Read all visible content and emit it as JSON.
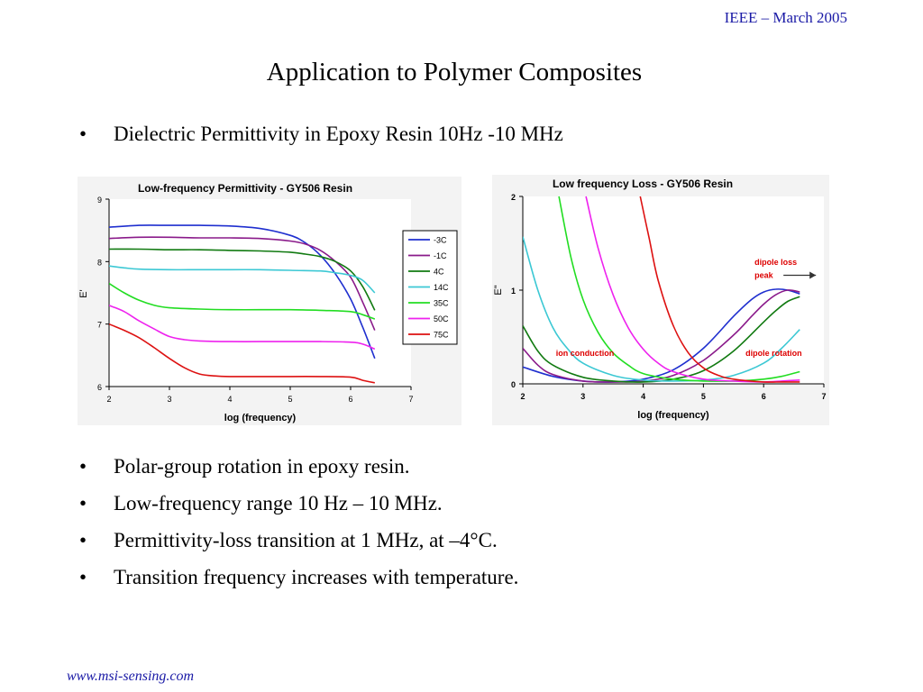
{
  "header": {
    "event": "IEEE – March 2005"
  },
  "slide": {
    "title": "Application to Polymer Composites"
  },
  "bullets_top": [
    {
      "text": "Dielectric Permittivity in Epoxy Resin 10Hz -10 MHz"
    }
  ],
  "bullets_bottom": [
    {
      "text": "Polar-group rotation in epoxy resin."
    },
    {
      "text": "Low-frequency range 10 Hz – 10 MHz."
    },
    {
      "text": "Permittivity-loss transition at 1 MHz, at –4°C."
    },
    {
      "text": "Transition frequency increases with temperature."
    }
  ],
  "bullet_glyph": "•",
  "footer": {
    "url": "www.msi-sensing.com"
  },
  "colors": {
    "-3C": "#1f2fcf",
    "-1C": "#8a1a8a",
    "4C": "#117a11",
    "14C": "#3cc8d4",
    "35C": "#22dd22",
    "50C": "#ee22ee",
    "75C": "#dd1111",
    "annotation": "#dd0000"
  },
  "chart_data": [
    {
      "type": "line",
      "title": "Low-frequency Permittivity - GY506 Resin",
      "xlabel": "log (frequency)",
      "ylabel": "E'",
      "xlim": [
        2,
        7
      ],
      "ylim": [
        6,
        9
      ],
      "xticks": [
        "2",
        "3",
        "4",
        "5",
        "6",
        "7"
      ],
      "yticks": [
        "6",
        "7",
        "8",
        "9"
      ],
      "grid": false,
      "legend": "right",
      "series": [
        {
          "name": "-3C",
          "x": [
            2,
            2.5,
            3,
            3.5,
            4,
            4.5,
            5,
            5.25,
            5.5,
            5.75,
            6,
            6.2,
            6.4
          ],
          "y": [
            8.55,
            8.58,
            8.58,
            8.58,
            8.57,
            8.53,
            8.42,
            8.3,
            8.1,
            7.8,
            7.4,
            6.95,
            6.45
          ]
        },
        {
          "name": "-1C",
          "x": [
            2,
            2.5,
            3,
            3.5,
            4,
            4.5,
            5,
            5.25,
            5.5,
            5.75,
            6,
            6.2,
            6.4
          ],
          "y": [
            8.37,
            8.39,
            8.39,
            8.38,
            8.38,
            8.37,
            8.33,
            8.28,
            8.18,
            8.0,
            7.75,
            7.35,
            6.9
          ]
        },
        {
          "name": "4C",
          "x": [
            2,
            2.5,
            3,
            3.5,
            4,
            4.5,
            5,
            5.25,
            5.5,
            5.75,
            6,
            6.2,
            6.4
          ],
          "y": [
            8.2,
            8.2,
            8.19,
            8.19,
            8.18,
            8.17,
            8.15,
            8.12,
            8.08,
            8.0,
            7.85,
            7.6,
            7.22
          ]
        },
        {
          "name": "14C",
          "x": [
            2,
            2.25,
            2.5,
            3,
            3.5,
            4,
            4.5,
            5,
            5.5,
            5.75,
            6,
            6.2,
            6.4
          ],
          "y": [
            7.93,
            7.9,
            7.88,
            7.87,
            7.87,
            7.87,
            7.87,
            7.86,
            7.85,
            7.82,
            7.78,
            7.7,
            7.5
          ]
        },
        {
          "name": "35C",
          "x": [
            2,
            2.25,
            2.5,
            2.75,
            3,
            3.5,
            4,
            4.5,
            5,
            5.5,
            6,
            6.2,
            6.4
          ],
          "y": [
            7.65,
            7.5,
            7.38,
            7.3,
            7.26,
            7.24,
            7.23,
            7.23,
            7.23,
            7.22,
            7.2,
            7.15,
            7.08
          ]
        },
        {
          "name": "50C",
          "x": [
            2,
            2.25,
            2.5,
            2.75,
            3,
            3.25,
            3.5,
            4,
            4.5,
            5,
            5.5,
            6,
            6.2,
            6.4
          ],
          "y": [
            7.3,
            7.2,
            7.05,
            6.92,
            6.8,
            6.75,
            6.73,
            6.72,
            6.72,
            6.72,
            6.72,
            6.71,
            6.68,
            6.6
          ]
        },
        {
          "name": "75C",
          "x": [
            2,
            2.25,
            2.5,
            2.75,
            3,
            3.25,
            3.5,
            3.75,
            4,
            4.5,
            5,
            5.5,
            6,
            6.2,
            6.4
          ],
          "y": [
            7.0,
            6.9,
            6.78,
            6.62,
            6.45,
            6.3,
            6.2,
            6.17,
            6.16,
            6.16,
            6.16,
            6.16,
            6.15,
            6.1,
            6.06
          ]
        }
      ]
    },
    {
      "type": "line",
      "title": "Low frequency Loss - GY506 Resin",
      "xlabel": "log (frequency)",
      "ylabel": "E\"",
      "xlim": [
        2,
        7
      ],
      "ylim": [
        0,
        2
      ],
      "xticks": [
        "2",
        "3",
        "4",
        "5",
        "6",
        "7"
      ],
      "yticks": [
        "0",
        "1",
        "2"
      ],
      "grid": false,
      "legend": "none",
      "annotations": [
        {
          "text": "dipole loss",
          "x": 5.85,
          "y": 1.27
        },
        {
          "text": "peak",
          "x": 5.85,
          "y": 1.13
        },
        {
          "text": "ion conduction",
          "x": 2.55,
          "y": 0.3
        },
        {
          "text": "dipole rotation",
          "x": 5.7,
          "y": 0.3
        }
      ],
      "series": [
        {
          "name": "-3C",
          "x": [
            2,
            2.5,
            3,
            3.5,
            4,
            4.5,
            5,
            5.5,
            5.8,
            6,
            6.2,
            6.4,
            6.6
          ],
          "y": [
            0.18,
            0.08,
            0.03,
            0.02,
            0.05,
            0.15,
            0.38,
            0.72,
            0.9,
            0.98,
            1.01,
            1.0,
            0.96
          ]
        },
        {
          "name": "-1C",
          "x": [
            2,
            2.25,
            2.5,
            3,
            3.5,
            4,
            4.5,
            5,
            5.5,
            5.8,
            6,
            6.2,
            6.4,
            6.6
          ],
          "y": [
            0.38,
            0.2,
            0.1,
            0.03,
            0.02,
            0.03,
            0.09,
            0.25,
            0.52,
            0.72,
            0.85,
            0.95,
            1.0,
            0.98
          ]
        },
        {
          "name": "4C",
          "x": [
            2,
            2.25,
            2.5,
            3,
            3.5,
            4,
            4.5,
            5,
            5.5,
            6,
            6.2,
            6.4,
            6.6
          ],
          "y": [
            0.62,
            0.35,
            0.2,
            0.07,
            0.03,
            0.02,
            0.05,
            0.14,
            0.35,
            0.66,
            0.78,
            0.88,
            0.93
          ]
        },
        {
          "name": "14C",
          "x": [
            2,
            2.25,
            2.5,
            2.75,
            3,
            3.5,
            4,
            4.5,
            5,
            5.5,
            6,
            6.3,
            6.6
          ],
          "y": [
            1.57,
            1.0,
            0.6,
            0.37,
            0.22,
            0.09,
            0.04,
            0.03,
            0.04,
            0.09,
            0.22,
            0.38,
            0.58
          ]
        },
        {
          "name": "35C",
          "x": [
            2.6,
            2.8,
            3,
            3.25,
            3.5,
            3.75,
            4,
            4.5,
            5,
            5.5,
            6,
            6.3,
            6.6
          ],
          "y": [
            2.0,
            1.35,
            0.9,
            0.55,
            0.33,
            0.2,
            0.11,
            0.05,
            0.03,
            0.03,
            0.05,
            0.08,
            0.13
          ]
        },
        {
          "name": "50C",
          "x": [
            3.05,
            3.25,
            3.5,
            3.75,
            4,
            4.25,
            4.5,
            5,
            5.5,
            6,
            6.3,
            6.6
          ],
          "y": [
            2.0,
            1.45,
            0.95,
            0.6,
            0.37,
            0.22,
            0.13,
            0.05,
            0.03,
            0.02,
            0.03,
            0.04
          ]
        },
        {
          "name": "75C",
          "x": [
            3.95,
            4.1,
            4.25,
            4.5,
            4.75,
            5,
            5.25,
            5.5,
            6,
            6.3,
            6.6
          ],
          "y": [
            2.0,
            1.55,
            1.1,
            0.62,
            0.33,
            0.17,
            0.09,
            0.05,
            0.02,
            0.02,
            0.02
          ]
        }
      ]
    }
  ]
}
